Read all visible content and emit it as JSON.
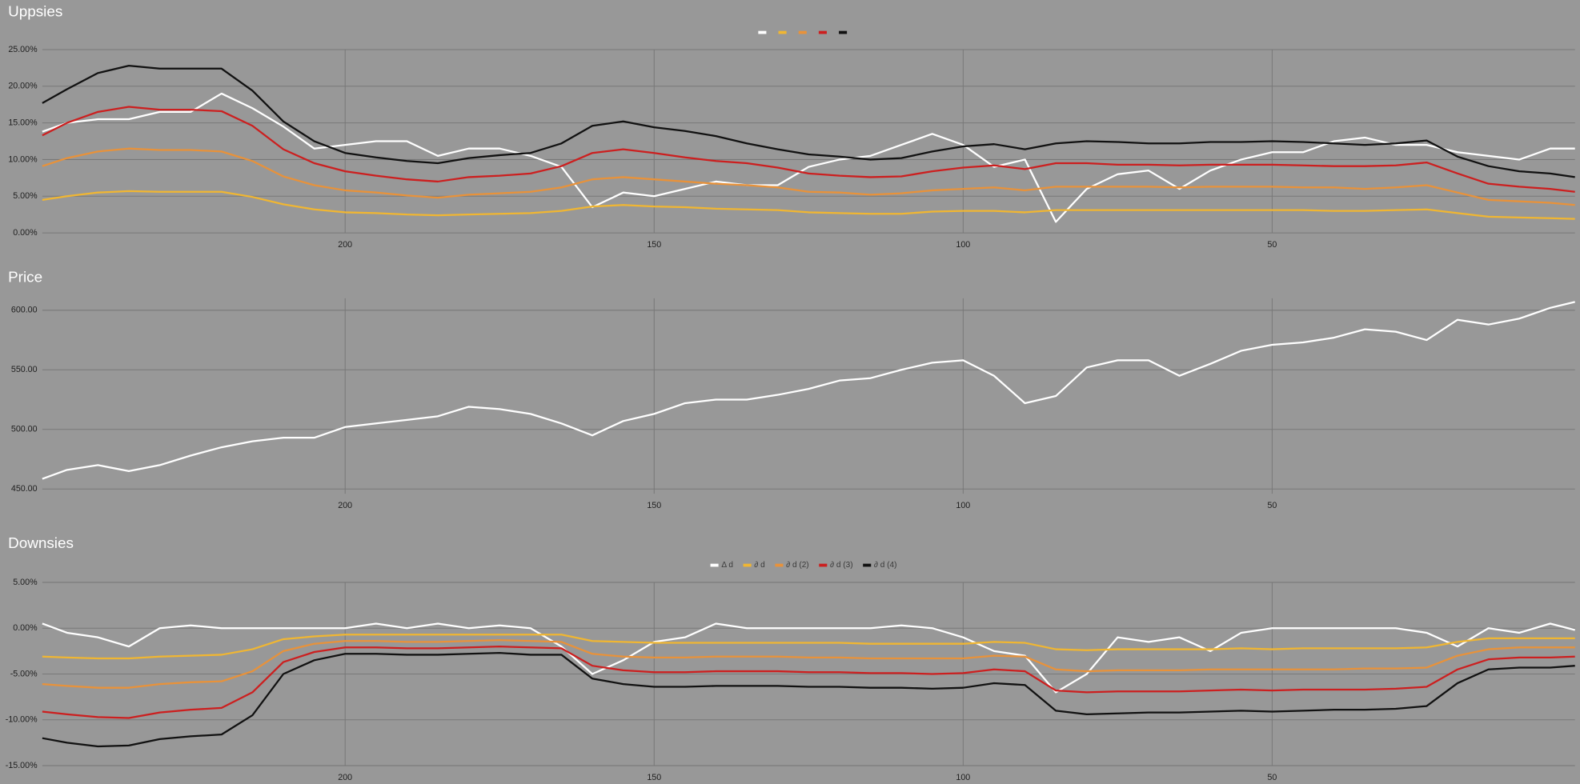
{
  "chart_data": [
    {
      "type": "line",
      "title": "Uppsies",
      "legend": "top",
      "grid": true,
      "x": [
        249,
        245,
        240,
        235,
        230,
        225,
        220,
        215,
        210,
        205,
        200,
        195,
        190,
        185,
        180,
        175,
        170,
        165,
        160,
        155,
        150,
        145,
        140,
        135,
        130,
        125,
        120,
        115,
        110,
        105,
        100,
        95,
        90,
        85,
        80,
        75,
        70,
        65,
        60,
        55,
        50,
        45,
        40,
        35,
        30,
        25,
        20,
        15,
        10,
        5,
        1
      ],
      "xlim": [
        249,
        1
      ],
      "xticks": [
        200,
        150,
        100,
        50
      ],
      "ylim": [
        0,
        25
      ],
      "yticks": [
        {
          "value": 0,
          "label": "0.00%"
        },
        {
          "value": 5,
          "label": "5.00%"
        },
        {
          "value": 10,
          "label": "10.00%"
        },
        {
          "value": 15,
          "label": "15.00%"
        },
        {
          "value": 20,
          "label": "20.00%"
        },
        {
          "value": 25,
          "label": "25.00%"
        }
      ],
      "series": [
        {
          "color": "#ffffff",
          "values": [
            13.8,
            15,
            15.5,
            15.5,
            16.5,
            16.5,
            19,
            17,
            14.5,
            11.5,
            12,
            12.5,
            12.5,
            10.5,
            11.5,
            11.5,
            10.5,
            9,
            3.5,
            5.5,
            5,
            6,
            7,
            6.5,
            6.5,
            9,
            10,
            10.5,
            12,
            13.5,
            12,
            9,
            10,
            1.5,
            6,
            8,
            8.5,
            6,
            8.5,
            10,
            11,
            11,
            12.5,
            13,
            12,
            12,
            11,
            10.5,
            10,
            11.5,
            11.5
          ]
        },
        {
          "color": "#f0b632",
          "values": [
            4.5,
            5.0,
            5.5,
            5.7,
            5.6,
            5.6,
            5.6,
            4.9,
            3.9,
            3.2,
            2.8,
            2.7,
            2.5,
            2.4,
            2.5,
            2.6,
            2.7,
            3.0,
            3.6,
            3.8,
            3.6,
            3.5,
            3.3,
            3.2,
            3.1,
            2.8,
            2.7,
            2.6,
            2.6,
            2.9,
            3.0,
            3.0,
            2.8,
            3.1,
            3.1,
            3.1,
            3.1,
            3.1,
            3.1,
            3.1,
            3.1,
            3.1,
            3.0,
            3.0,
            3.1,
            3.2,
            2.7,
            2.2,
            2.1,
            2.0,
            1.9
          ]
        },
        {
          "color": "#e8923a",
          "values": [
            9.1,
            10.2,
            11.1,
            11.5,
            11.3,
            11.3,
            11.1,
            9.8,
            7.7,
            6.5,
            5.8,
            5.5,
            5.1,
            4.8,
            5.2,
            5.4,
            5.6,
            6.2,
            7.3,
            7.6,
            7.3,
            7.0,
            6.7,
            6.5,
            6.2,
            5.6,
            5.5,
            5.2,
            5.4,
            5.8,
            6.0,
            6.2,
            5.8,
            6.3,
            6.3,
            6.3,
            6.3,
            6.2,
            6.3,
            6.3,
            6.3,
            6.2,
            6.2,
            6.0,
            6.2,
            6.5,
            5.5,
            4.5,
            4.3,
            4.1,
            3.8
          ]
        },
        {
          "color": "#cc1f1f",
          "values": [
            13.3,
            15.0,
            16.5,
            17.2,
            16.8,
            16.8,
            16.6,
            14.6,
            11.4,
            9.5,
            8.4,
            7.8,
            7.3,
            7.0,
            7.6,
            7.8,
            8.1,
            9.1,
            10.9,
            11.4,
            10.9,
            10.3,
            9.8,
            9.5,
            8.9,
            8.1,
            7.8,
            7.6,
            7.7,
            8.4,
            8.9,
            9.2,
            8.7,
            9.5,
            9.5,
            9.3,
            9.3,
            9.2,
            9.3,
            9.3,
            9.3,
            9.2,
            9.1,
            9.1,
            9.2,
            9.6,
            8.1,
            6.7,
            6.3,
            6.0,
            5.6
          ]
        },
        {
          "color": "#111111",
          "values": [
            17.7,
            19.6,
            21.8,
            22.8,
            22.4,
            22.4,
            22.4,
            19.4,
            15.2,
            12.5,
            10.9,
            10.3,
            9.8,
            9.5,
            10.2,
            10.6,
            10.9,
            12.2,
            14.6,
            15.2,
            14.4,
            13.9,
            13.2,
            12.2,
            11.4,
            10.7,
            10.4,
            10.0,
            10.2,
            11.1,
            11.8,
            12.1,
            11.4,
            12.2,
            12.5,
            12.4,
            12.2,
            12.2,
            12.4,
            12.4,
            12.5,
            12.4,
            12.2,
            12.0,
            12.2,
            12.6,
            10.4,
            9.1,
            8.4,
            8.1,
            7.6
          ]
        }
      ]
    },
    {
      "type": "line",
      "title": "Price",
      "grid": true,
      "x": [
        249,
        245,
        240,
        235,
        230,
        225,
        220,
        215,
        210,
        205,
        200,
        195,
        190,
        185,
        180,
        175,
        170,
        165,
        160,
        155,
        150,
        145,
        140,
        135,
        130,
        125,
        120,
        115,
        110,
        105,
        100,
        95,
        90,
        85,
        80,
        75,
        70,
        65,
        60,
        55,
        50,
        45,
        40,
        35,
        30,
        25,
        20,
        15,
        10,
        5,
        1
      ],
      "xlim": [
        249,
        1
      ],
      "xticks": [
        200,
        150,
        100,
        50
      ],
      "ylim": [
        446,
        610
      ],
      "yticks": [
        {
          "value": 450,
          "label": "450.00"
        },
        {
          "value": 500,
          "label": "500.00"
        },
        {
          "value": 550,
          "label": "550.00"
        },
        {
          "value": 600,
          "label": "600.00"
        }
      ],
      "series": [
        {
          "color": "#ffffff",
          "values": [
            458.5,
            466,
            470,
            465,
            470,
            478,
            485,
            490,
            493,
            493,
            502,
            505,
            508,
            511,
            519,
            517,
            513,
            505,
            495,
            507,
            513,
            522,
            525,
            525,
            529,
            534,
            541,
            543,
            550,
            556,
            558,
            545,
            522,
            528,
            552,
            558,
            558,
            545,
            555,
            566,
            571,
            573,
            577,
            584,
            582,
            575,
            592,
            588,
            593,
            602,
            607
          ]
        }
      ]
    },
    {
      "type": "line",
      "title": "Downsies",
      "legend": "top",
      "grid": true,
      "x": [
        249,
        245,
        240,
        235,
        230,
        225,
        220,
        215,
        210,
        205,
        200,
        195,
        190,
        185,
        180,
        175,
        170,
        165,
        160,
        155,
        150,
        145,
        140,
        135,
        130,
        125,
        120,
        115,
        110,
        105,
        100,
        95,
        90,
        85,
        80,
        75,
        70,
        65,
        60,
        55,
        50,
        45,
        40,
        35,
        30,
        25,
        20,
        15,
        10,
        5,
        1
      ],
      "xlim": [
        249,
        1
      ],
      "xticks": [
        200,
        150,
        100,
        50
      ],
      "ylim": [
        -15,
        5
      ],
      "yticks": [
        {
          "value": -15,
          "label": "-15.00%"
        },
        {
          "value": -10,
          "label": "-10.00%"
        },
        {
          "value": -5,
          "label": "-5.00%"
        },
        {
          "value": 0,
          "label": "0.00%"
        },
        {
          "value": 5,
          "label": "5.00%"
        }
      ],
      "series": [
        {
          "name": "Δ d",
          "color": "#ffffff",
          "values": [
            0.5,
            -0.5,
            -1,
            -2,
            0,
            0.3,
            0,
            0,
            0,
            0,
            0,
            0.5,
            0,
            0.5,
            0,
            0.3,
            0,
            -2,
            -5,
            -3.5,
            -1.5,
            -1,
            0.5,
            0,
            0,
            0,
            0,
            0,
            0.3,
            0,
            -1,
            -2.5,
            -3,
            -7,
            -5,
            -1,
            -1.5,
            -1,
            -2.5,
            -0.5,
            0,
            0,
            0,
            0,
            0,
            -0.5,
            -2,
            0,
            -0.5,
            0.5,
            -0.2
          ]
        },
        {
          "name": "∂ d",
          "color": "#f0b632",
          "values": [
            -3.1,
            -3.2,
            -3.3,
            -3.3,
            -3.1,
            -3,
            -2.9,
            -2.3,
            -1.2,
            -0.9,
            -0.7,
            -0.7,
            -0.7,
            -0.7,
            -0.7,
            -0.7,
            -0.7,
            -0.7,
            -1.4,
            -1.5,
            -1.6,
            -1.6,
            -1.6,
            -1.6,
            -1.6,
            -1.6,
            -1.6,
            -1.7,
            -1.7,
            -1.7,
            -1.7,
            -1.5,
            -1.6,
            -2.3,
            -2.4,
            -2.3,
            -2.3,
            -2.3,
            -2.3,
            -2.2,
            -2.3,
            -2.2,
            -2.2,
            -2.2,
            -2.2,
            -2.1,
            -1.5,
            -1.1,
            -1.1,
            -1.1,
            -1.1
          ]
        },
        {
          "name": "∂ d (2)",
          "color": "#e8923a",
          "values": [
            -6.1,
            -6.3,
            -6.5,
            -6.5,
            -6.1,
            -5.9,
            -5.8,
            -4.7,
            -2.5,
            -1.7,
            -1.4,
            -1.4,
            -1.5,
            -1.5,
            -1.4,
            -1.3,
            -1.4,
            -1.5,
            -2.8,
            -3.1,
            -3.2,
            -3.2,
            -3.1,
            -3.1,
            -3.1,
            -3.2,
            -3.2,
            -3.3,
            -3.3,
            -3.3,
            -3.3,
            -3,
            -3.1,
            -4.5,
            -4.7,
            -4.6,
            -4.6,
            -4.6,
            -4.5,
            -4.5,
            -4.5,
            -4.5,
            -4.5,
            -4.4,
            -4.4,
            -4.3,
            -3,
            -2.3,
            -2.1,
            -2.1,
            -2.1
          ]
        },
        {
          "name": "∂ d (3)",
          "color": "#cc1f1f",
          "values": [
            -9.1,
            -9.4,
            -9.7,
            -9.8,
            -9.2,
            -8.9,
            -8.7,
            -7,
            -3.7,
            -2.6,
            -2.1,
            -2.1,
            -2.2,
            -2.2,
            -2.1,
            -2,
            -2.1,
            -2.2,
            -4.1,
            -4.6,
            -4.8,
            -4.8,
            -4.7,
            -4.7,
            -4.7,
            -4.8,
            -4.8,
            -4.9,
            -4.9,
            -5,
            -4.9,
            -4.5,
            -4.7,
            -6.8,
            -7,
            -6.9,
            -6.9,
            -6.9,
            -6.8,
            -6.7,
            -6.8,
            -6.7,
            -6.7,
            -6.7,
            -6.6,
            -6.4,
            -4.5,
            -3.4,
            -3.2,
            -3.2,
            -3.1
          ]
        },
        {
          "name": "∂ d (4)",
          "color": "#111111",
          "values": [
            -12,
            -12.5,
            -12.9,
            -12.8,
            -12.1,
            -11.8,
            -11.6,
            -9.5,
            -5,
            -3.5,
            -2.8,
            -2.8,
            -2.9,
            -2.9,
            -2.8,
            -2.7,
            -2.9,
            -2.9,
            -5.5,
            -6.1,
            -6.4,
            -6.4,
            -6.3,
            -6.3,
            -6.3,
            -6.4,
            -6.4,
            -6.5,
            -6.5,
            -6.6,
            -6.5,
            -6,
            -6.2,
            -9,
            -9.4,
            -9.3,
            -9.2,
            -9.2,
            -9.1,
            -9,
            -9.1,
            -9,
            -8.9,
            -8.9,
            -8.8,
            -8.5,
            -6,
            -4.5,
            -4.3,
            -4.3,
            -4.1
          ]
        }
      ]
    }
  ]
}
